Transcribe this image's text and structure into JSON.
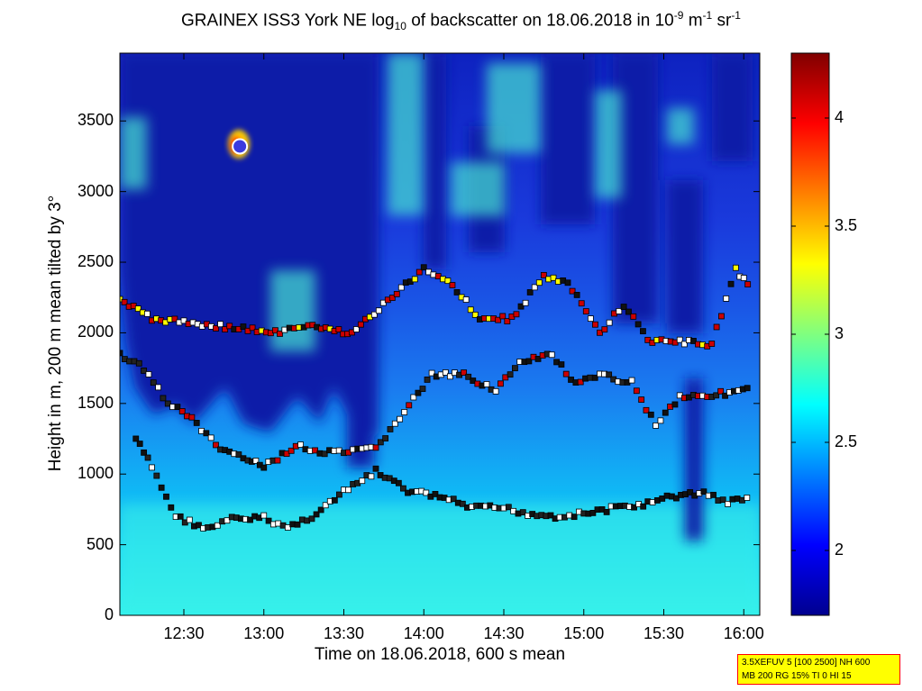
{
  "title": {
    "pre": "GRAINEX ISS3 York NE log",
    "sub": "10",
    "mid": " of backscatter on 18.06.2018 in 10",
    "sup1": "-9",
    "unit1": " m",
    "sup2": "-1",
    "unit2": " sr",
    "sup3": "-1"
  },
  "note_lines": [
    "3.5XEFUV 5 [100 2500] NH 600",
    "MB 200 RG 15% TI 0 HI 15"
  ],
  "chart_data": {
    "type": "heatmap",
    "xlabel": "Time on 18.06.2018, 600 s mean",
    "ylabel": "Height in m, 200 m mean tilted by 3°",
    "x_ticks": [
      "12:30",
      "13:00",
      "13:30",
      "14:00",
      "14:30",
      "15:00",
      "15:30",
      "16:00"
    ],
    "x_tick_hours": [
      12.5,
      13.0,
      13.5,
      14.0,
      14.5,
      15.0,
      15.5,
      16.0
    ],
    "xlim_hours": [
      12.1,
      16.1
    ],
    "y_ticks": [
      0,
      500,
      1000,
      1500,
      2000,
      2500,
      3000,
      3500
    ],
    "ylim": [
      0,
      3980
    ],
    "colorbar": {
      "ticks": [
        2,
        2.5,
        3,
        3.5,
        4
      ],
      "range": [
        1.7,
        4.3
      ],
      "colormap": "jet"
    },
    "layers": {
      "lower_mixing_layer": [
        [
          12.2,
          1250
        ],
        [
          12.3,
          1050
        ],
        [
          12.45,
          700
        ],
        [
          12.65,
          610
        ],
        [
          12.8,
          680
        ],
        [
          13.0,
          690
        ],
        [
          13.15,
          620
        ],
        [
          13.3,
          700
        ],
        [
          13.5,
          870
        ],
        [
          13.7,
          1020
        ],
        [
          13.9,
          880
        ],
        [
          14.1,
          840
        ],
        [
          14.3,
          760
        ],
        [
          14.5,
          760
        ],
        [
          14.65,
          720
        ],
        [
          14.85,
          700
        ],
        [
          15.0,
          720
        ],
        [
          15.2,
          760
        ],
        [
          15.4,
          790
        ],
        [
          15.55,
          840
        ],
        [
          15.75,
          870
        ],
        [
          15.9,
          800
        ],
        [
          16.05,
          830
        ]
      ],
      "middle_layer": [
        [
          12.1,
          1850
        ],
        [
          12.25,
          1750
        ],
        [
          12.4,
          1500
        ],
        [
          12.55,
          1400
        ],
        [
          12.7,
          1200
        ],
        [
          12.9,
          1100
        ],
        [
          13.0,
          1050
        ],
        [
          13.2,
          1200
        ],
        [
          13.35,
          1150
        ],
        [
          13.5,
          1150
        ],
        [
          13.7,
          1180
        ],
        [
          13.85,
          1400
        ],
        [
          14.05,
          1700
        ],
        [
          14.25,
          1700
        ],
        [
          14.45,
          1600
        ],
        [
          14.6,
          1780
        ],
        [
          14.8,
          1850
        ],
        [
          14.95,
          1630
        ],
        [
          15.1,
          1700
        ],
        [
          15.3,
          1650
        ],
        [
          15.45,
          1350
        ],
        [
          15.6,
          1550
        ],
        [
          15.8,
          1560
        ],
        [
          16.05,
          1600
        ]
      ],
      "upper_layer": [
        [
          12.1,
          2230
        ],
        [
          12.3,
          2100
        ],
        [
          13.1,
          2000
        ],
        [
          13.25,
          2050
        ],
        [
          13.55,
          2000
        ],
        [
          14.0,
          2450
        ],
        [
          14.15,
          2380
        ],
        [
          14.35,
          2100
        ],
        [
          14.55,
          2100
        ],
        [
          14.75,
          2400
        ],
        [
          14.9,
          2350
        ],
        [
          15.1,
          2000
        ],
        [
          15.25,
          2200
        ],
        [
          15.4,
          1950
        ],
        [
          15.8,
          1920
        ],
        [
          15.95,
          2450
        ],
        [
          16.05,
          2300
        ]
      ]
    },
    "annotation_marker": {
      "time_hours": 12.85,
      "height": 3320
    }
  }
}
